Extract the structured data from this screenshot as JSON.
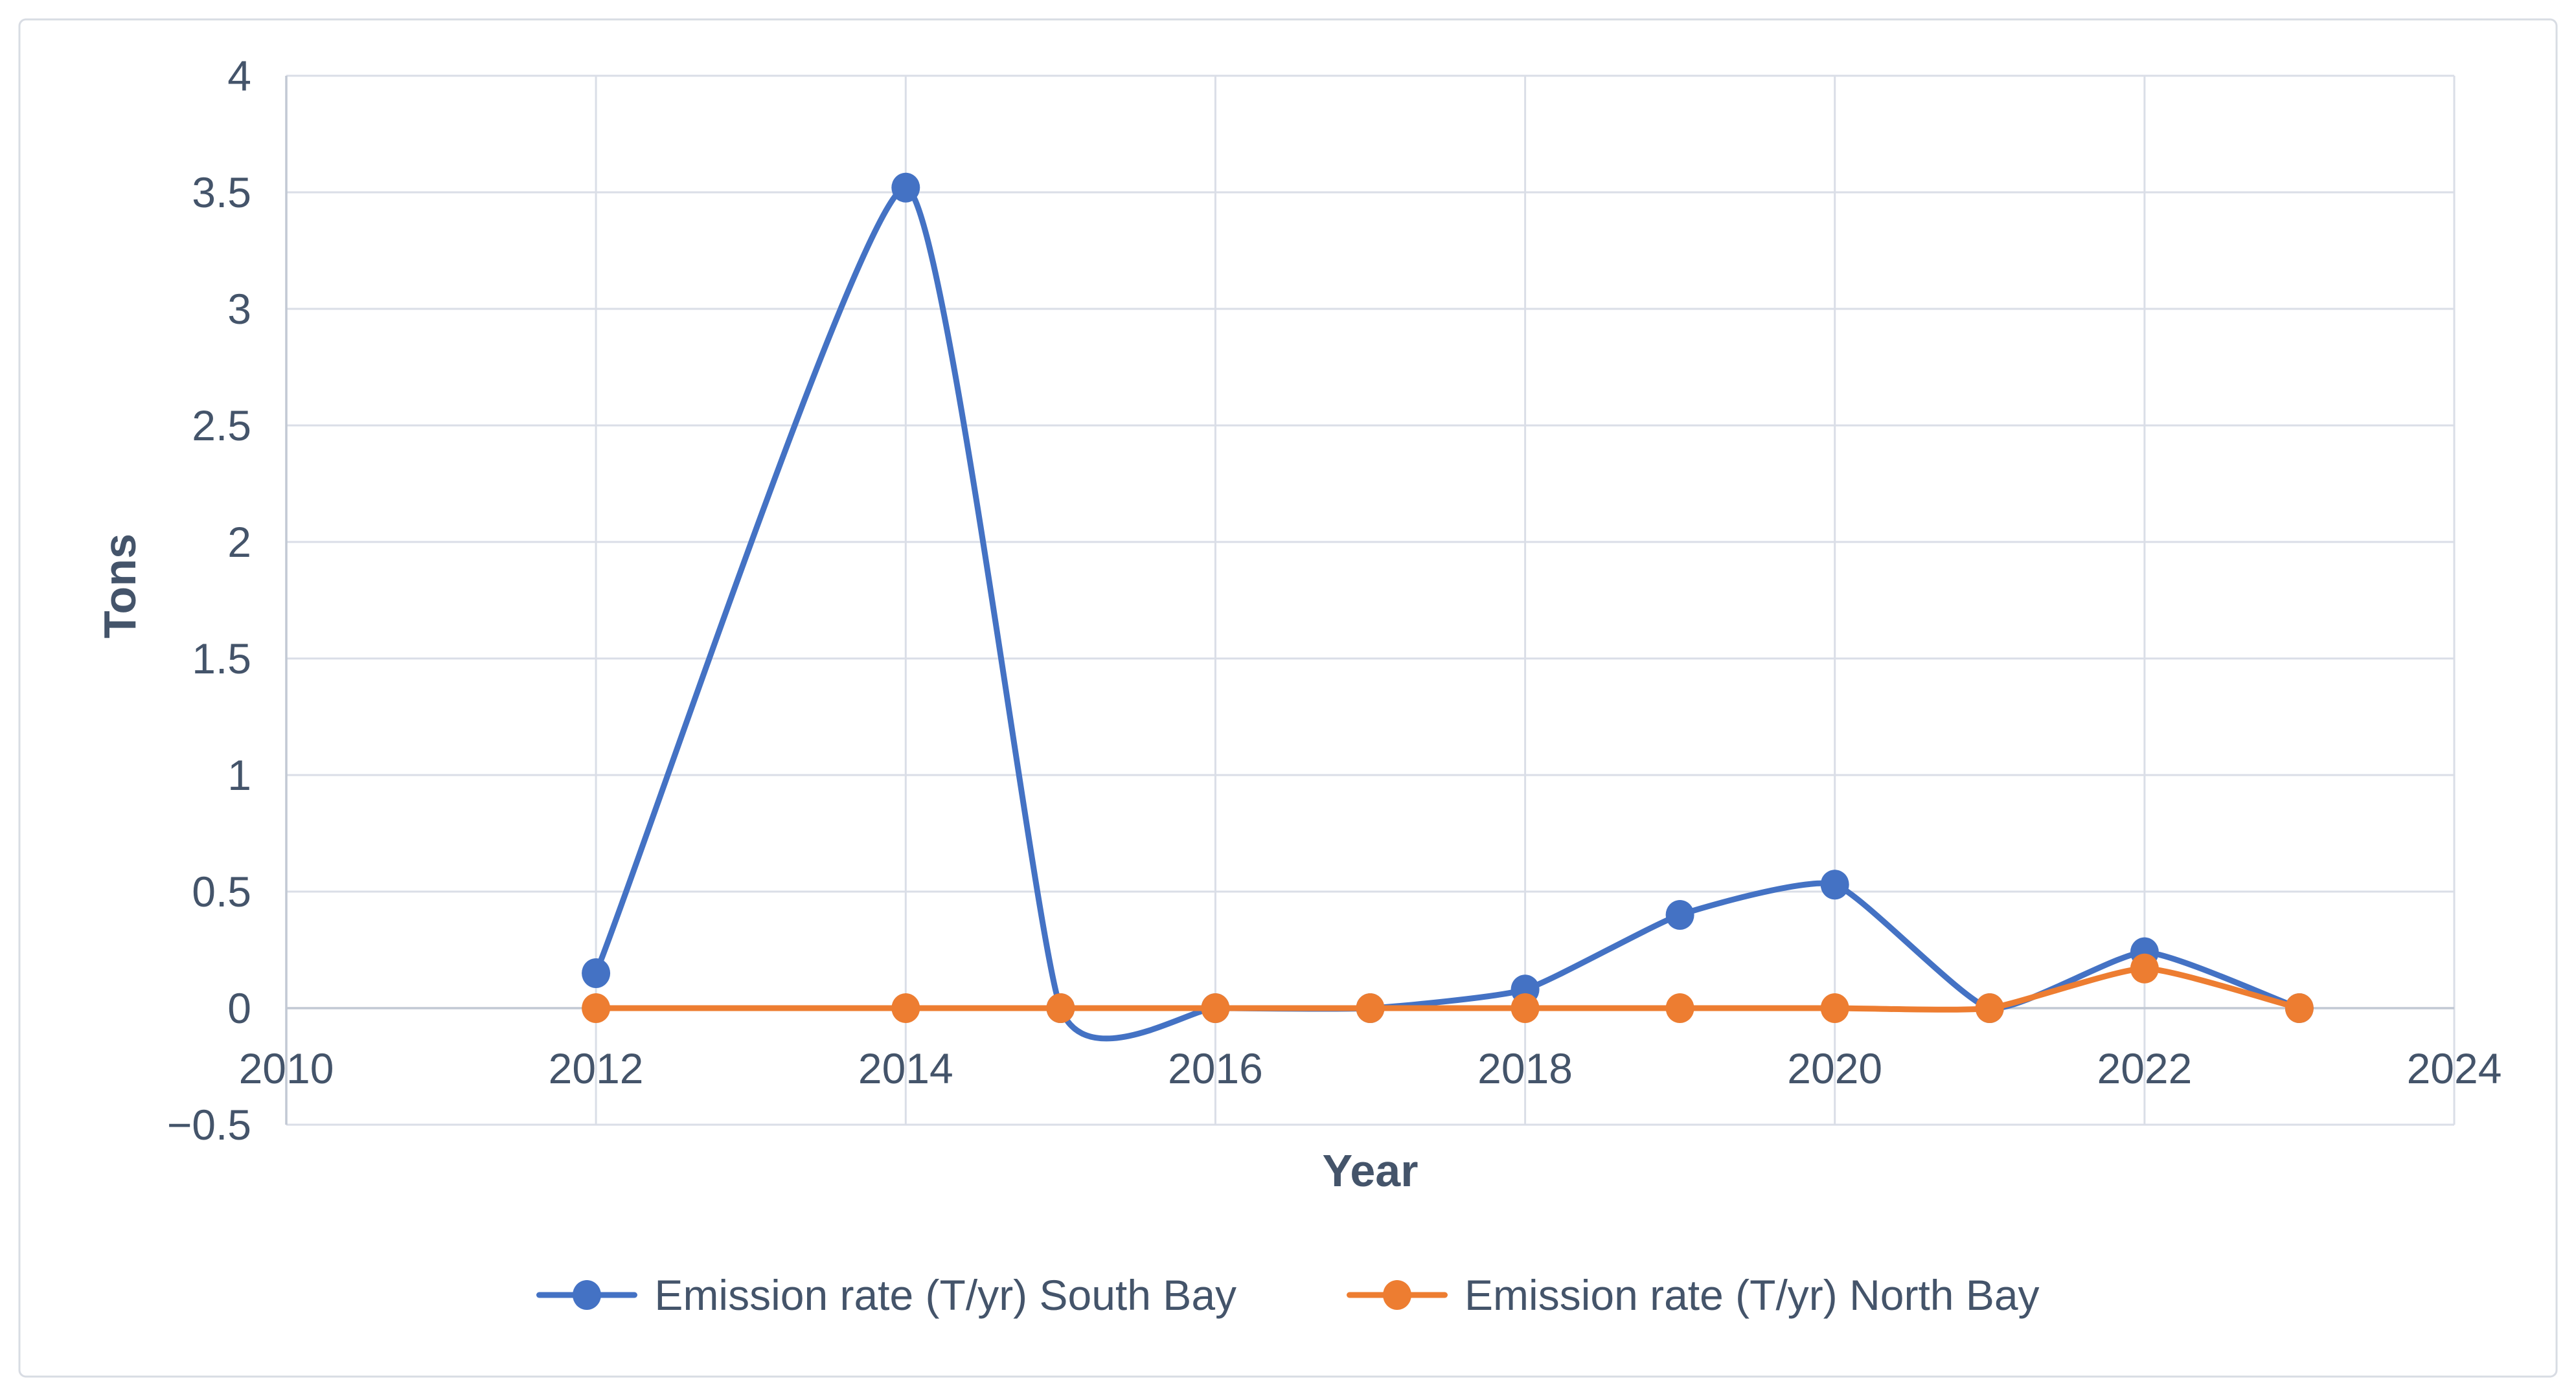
{
  "figure": {
    "background": "#FFFFFF",
    "border_color": "#D8DCE3"
  },
  "style": {
    "text_color": "#44546A",
    "grid_color": "#DADEE7",
    "axis_line_color": "#C2C9D4"
  },
  "chart_data": {
    "type": "line",
    "title": "",
    "xlabel": "Year",
    "ylabel": "Tons",
    "line_style": "smooth",
    "marker_style": "circle",
    "grid": true,
    "legend_position": "bottom-center",
    "x_axis": {
      "min": 2010,
      "max": 2024,
      "tick_step": 2,
      "tick_labels": [
        "2010",
        "2012",
        "2014",
        "2016",
        "2018",
        "2020",
        "2022",
        "2024"
      ]
    },
    "y_axis": {
      "min": -0.5,
      "max": 4,
      "tick_step": 0.5,
      "tick_labels_top_to_bottom": [
        "4",
        "3.5",
        "3",
        "2.5",
        "2",
        "1.5",
        "1",
        "0.5",
        "0",
        "−0.5"
      ]
    },
    "series": [
      {
        "name": "Emission rate (T/yr) South Bay",
        "color": "#4472C4",
        "x": [
          2012,
          2014,
          2015,
          2016,
          2017,
          2018,
          2019,
          2020,
          2021,
          2022,
          2023
        ],
        "y": [
          0.15,
          3.52,
          0,
          0,
          0,
          0.08,
          0.4,
          0.53,
          0,
          0.24,
          0
        ]
      },
      {
        "name": "Emission rate (T/yr) North Bay",
        "color": "#ED7D31",
        "x": [
          2012,
          2014,
          2015,
          2016,
          2017,
          2018,
          2019,
          2020,
          2021,
          2022,
          2023
        ],
        "y": [
          0,
          0,
          0,
          0,
          0,
          0,
          0,
          0,
          0,
          0.17,
          0
        ]
      }
    ]
  }
}
